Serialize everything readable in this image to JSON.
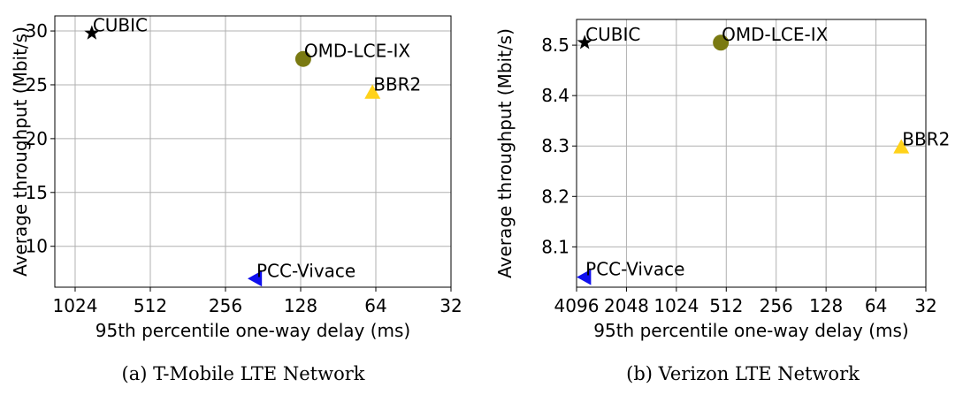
{
  "chart_data": [
    {
      "type": "scatter",
      "caption": "(a) T-Mobile LTE Network",
      "xlabel": "95th percentile one-way delay (ms)",
      "ylabel": "Average throughput (Mbit/s)",
      "xscale": "log",
      "xlim": [
        1235,
        32
      ],
      "xticks": [
        1024,
        512,
        256,
        128,
        64,
        32
      ],
      "ylim": [
        6.2,
        31.4
      ],
      "yticks": [
        10,
        15,
        20,
        25,
        30
      ],
      "grid": true,
      "series": [
        {
          "name": "CUBIC",
          "color": "#000000",
          "marker": "star",
          "x": [
            878
          ],
          "y": [
            29.8
          ]
        },
        {
          "name": "OMD-LCE-IX",
          "color": "#7a7a12",
          "marker": "circle",
          "x": [
            125
          ],
          "y": [
            27.4
          ]
        },
        {
          "name": "BBR2",
          "color": "#ffd21a",
          "marker": "triangle-up",
          "x": [
            66
          ],
          "y": [
            24.3
          ]
        },
        {
          "name": "PCC-Vivace",
          "color": "#1010ee",
          "marker": "triangle-left",
          "x": [
            194
          ],
          "y": [
            7.0
          ]
        }
      ]
    },
    {
      "type": "scatter",
      "caption": "(b) Verizon LTE Network",
      "xlabel": "95th percentile one-way delay (ms)",
      "ylabel": "Average throughput (Mbit/s)",
      "xscale": "log",
      "xlim": [
        4096,
        32
      ],
      "xticks": [
        4096,
        2048,
        1024,
        512,
        256,
        128,
        64,
        32
      ],
      "ylim": [
        8.02,
        8.551
      ],
      "yticks": [
        8.1,
        8.2,
        8.3,
        8.4,
        8.5
      ],
      "grid": true,
      "series": [
        {
          "name": "CUBIC",
          "color": "#000000",
          "marker": "star",
          "x": [
            3660
          ],
          "y": [
            8.505
          ]
        },
        {
          "name": "OMD-LCE-IX",
          "color": "#7a7a12",
          "marker": "circle",
          "x": [
            552
          ],
          "y": [
            8.505
          ]
        },
        {
          "name": "BBR2",
          "color": "#ffd21a",
          "marker": "triangle-up",
          "x": [
            45
          ],
          "y": [
            8.298
          ]
        },
        {
          "name": "PCC-Vivace",
          "color": "#1010ee",
          "marker": "triangle-left",
          "x": [
            3660
          ],
          "y": [
            8.04
          ]
        }
      ]
    }
  ]
}
